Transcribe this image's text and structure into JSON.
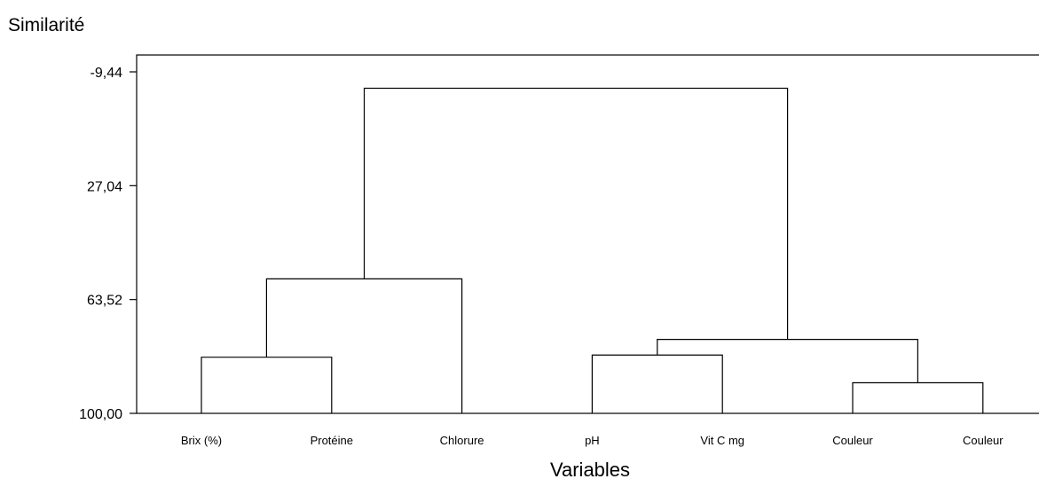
{
  "chart_data": {
    "type": "dendrogram",
    "ylabel": "Similarité",
    "xlabel": "Variables",
    "yticks": [
      "-9,44",
      "27,04",
      "63,52",
      "100,00"
    ],
    "ylim": [
      -9.44,
      100.0
    ],
    "leaves": [
      "Brix (%)",
      "Protéine",
      "Chlorure",
      "pH",
      "Vit C mg",
      "Couleur",
      "Couleur"
    ],
    "merges": [
      {
        "left": 5,
        "right": 6,
        "similarity": 90.2
      },
      {
        "left": 0,
        "right": 1,
        "similarity": 82.0
      },
      {
        "left": 3,
        "right": 4,
        "similarity": 81.3
      },
      {
        "left": 9,
        "right": 7,
        "similarity": 76.3
      },
      {
        "left": 8,
        "right": 2,
        "similarity": 56.9
      },
      {
        "left": 11,
        "right": 10,
        "similarity": -4.2
      }
    ]
  }
}
